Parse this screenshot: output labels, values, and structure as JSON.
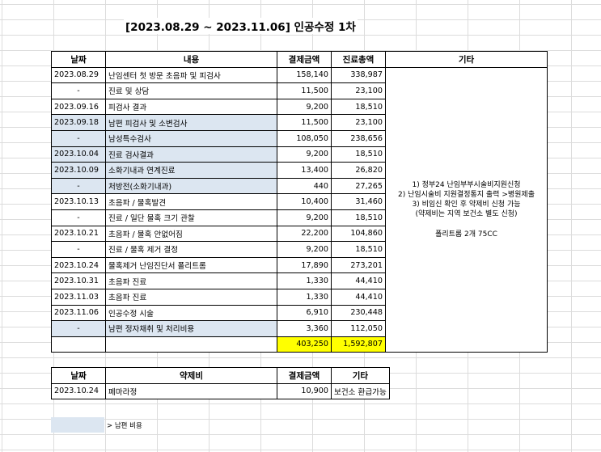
{
  "title": "[2023.08.29 ~ 2023.11.06] 인공수정 1차",
  "main_table": {
    "headers": [
      "날짜",
      "내용",
      "결제금액",
      "진료총액",
      "기타"
    ],
    "rows": [
      {
        "date": "2023.08.29",
        "desc": "난임센터 첫 방문 초음파 및 피검사",
        "paid": "158,140",
        "total": "338,987",
        "highlight": false
      },
      {
        "date": "-",
        "desc": "진료 및 상담",
        "paid": "11,500",
        "total": "23,100",
        "highlight": false
      },
      {
        "date": "2023.09.16",
        "desc": "피검사 결과",
        "paid": "9,200",
        "total": "18,510",
        "highlight": false
      },
      {
        "date": "2023.09.18",
        "desc": "남편 피검사 및 소변검사",
        "paid": "11,500",
        "total": "23,100",
        "highlight": true
      },
      {
        "date": "-",
        "desc": "남성특수검사",
        "paid": "108,050",
        "total": "238,656",
        "highlight": true
      },
      {
        "date": "2023.10.04",
        "desc": "진료 검사결과",
        "paid": "9,200",
        "total": "18,510",
        "highlight": true
      },
      {
        "date": "2023.10.09",
        "desc": "소화기내과 연계진료",
        "paid": "13,400",
        "total": "26,820",
        "highlight": true
      },
      {
        "date": "-",
        "desc": "처방전(소화기내과)",
        "paid": "440",
        "total": "27,265",
        "highlight": true
      },
      {
        "date": "2023.10.13",
        "desc": "초음파 / 물혹발견",
        "paid": "10,400",
        "total": "31,460",
        "highlight": false
      },
      {
        "date": "-",
        "desc": "진료 / 일단 물혹 크기 관찰",
        "paid": "9,200",
        "total": "18,510",
        "highlight": false
      },
      {
        "date": "2023.10.21",
        "desc": "초음파 / 물혹 안없어짐",
        "paid": "22,200",
        "total": "104,860",
        "highlight": false
      },
      {
        "date": "-",
        "desc": "진료 / 물혹 제거 결정",
        "paid": "9,200",
        "total": "18,510",
        "highlight": false
      },
      {
        "date": "2023.10.24",
        "desc": "물혹제거 난임진단서 폴리트롬",
        "paid": "17,890",
        "total": "273,201",
        "highlight": false
      },
      {
        "date": "2023.10.31",
        "desc": "초음파 진료",
        "paid": "1,330",
        "total": "44,410",
        "highlight": false
      },
      {
        "date": "2023.11.03",
        "desc": "초음파 진료",
        "paid": "1,330",
        "total": "44,410",
        "highlight": false
      },
      {
        "date": "2023.11.06",
        "desc": "인공수정 시술",
        "paid": "6,910",
        "total": "230,448",
        "highlight": false
      },
      {
        "date": "-",
        "desc": "남편 정자채취 및 처리비용",
        "paid": "3,360",
        "total": "112,050",
        "highlight": true
      }
    ],
    "totals": {
      "paid": "403,250",
      "total": "1,592,807"
    },
    "notes": [
      "1) 정부24 난임부부시술비지원신청",
      "2) 난임시술비 지원결정통지 출력 >병원제출",
      "3) 비임신 확인 후 약제비 신청 가능",
      "(약제비는 지역 보건소 별도 신청)",
      "",
      "폴리트롬 2개 75CC"
    ]
  },
  "drug_table": {
    "headers": [
      "날짜",
      "약제비",
      "결제금액",
      "기타"
    ],
    "rows": [
      {
        "date": "2023.10.24",
        "desc": "페마라정",
        "paid": "10,900",
        "note": "보건소 환급가능"
      }
    ]
  },
  "legend": {
    "text": "> 남편 비용",
    "color": "#dce6f1"
  }
}
